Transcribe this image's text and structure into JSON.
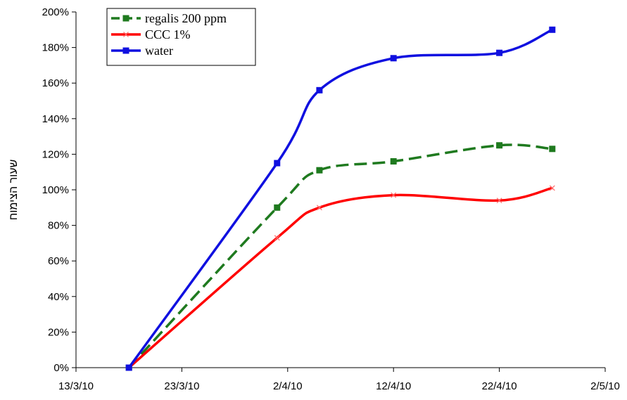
{
  "chart_data": {
    "type": "line",
    "title": "",
    "xlabel": "",
    "ylabel": "שעור הצימוח",
    "x_ticks": [
      "13/3/10",
      "23/3/10",
      "2/4/10",
      "12/4/10",
      "22/4/10",
      "2/5/10"
    ],
    "y_ticks": [
      "0%",
      "20%",
      "40%",
      "60%",
      "80%",
      "100%",
      "120%",
      "140%",
      "160%",
      "180%",
      "200%"
    ],
    "xlim": [
      "2010-03-13",
      "2010-05-02"
    ],
    "ylim": [
      0,
      200
    ],
    "y_unit": "%",
    "x": [
      "2010-03-18",
      "2010-04-01",
      "2010-04-05",
      "2010-04-12",
      "2010-04-22",
      "2010-04-27"
    ],
    "legend": "top-left",
    "grid": false,
    "series": [
      {
        "name": "regalis 200 ppm",
        "color": "#1f7a1f",
        "line_style": "dashed",
        "marker": "square",
        "values": [
          0,
          90,
          111,
          116,
          125,
          123
        ]
      },
      {
        "name": "CCC 1%",
        "color": "#ff0000",
        "line_style": "solid",
        "marker": "x",
        "values": [
          0,
          73,
          90,
          97,
          94,
          101
        ]
      },
      {
        "name": "water",
        "color": "#1010e0",
        "line_style": "solid",
        "marker": "square",
        "values": [
          0,
          115,
          156,
          174,
          177,
          190
        ]
      }
    ]
  }
}
